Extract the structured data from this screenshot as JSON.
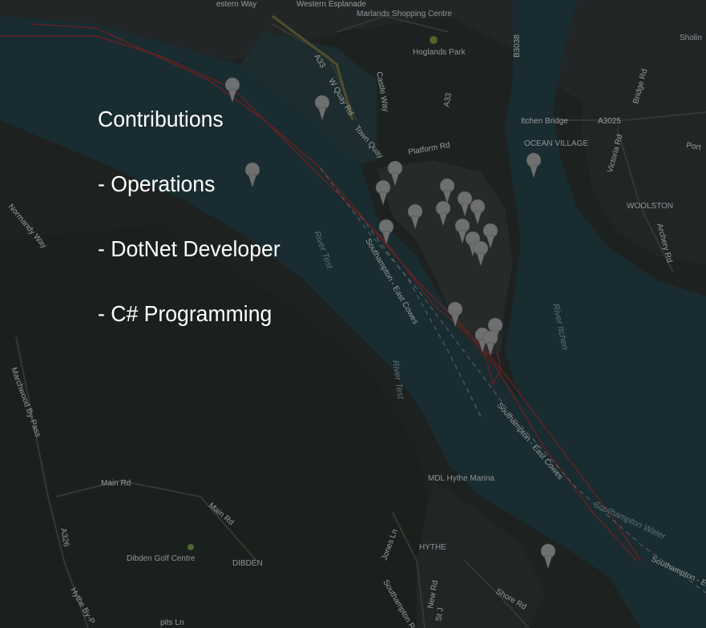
{
  "overlay": {
    "heading": "Contributions",
    "items": [
      "- Operations",
      "- DotNet Developer",
      "- C# Programming"
    ]
  },
  "map": {
    "places": {
      "marlands": "Marlands Shopping Centre",
      "hoglands": "Hoglands Park",
      "itchen_bridge": "Itchen Bridge",
      "ocean_village": "OCEAN VILLAGE",
      "woolston": "WOOLSTON",
      "hythe": "HYTHE",
      "dibden": "DIBDEN",
      "dibden_golf": "Dibden Golf Centre",
      "hythe_marina": "MDL Hythe Marina",
      "sholing": "Sholin"
    },
    "roads": {
      "western_esplanade": "Western Esplanade",
      "western_way": "estern Way",
      "w_quay_rd": "W Quay Rd",
      "a33": "A33",
      "town_quay": "Town Quay",
      "castle_way": "Castle Way",
      "platform_rd": "Platform Rd",
      "a3025": "A3025",
      "b3038": "B3038",
      "victoria_rd": "Victoria Rd",
      "bridge_rd": "Bridge Rd",
      "archery_rd": "Archery Rd",
      "portsmouth_rd": "Port",
      "marchwood_bypass": "Marchwood By-Pass",
      "main_rd": "Main Rd",
      "a326": "A326",
      "jones_ln": "Jones Ln",
      "new_rd": "New Rd",
      "shore_rd": "Shore Rd",
      "southampton_rd": "Southampton R",
      "normandy_way": "Normandy Way",
      "hythe_by_pass": "Hythe By-P",
      "st_johns": "St J",
      "pits_ln": "pits Ln"
    },
    "water": {
      "river_test_1": "River Test",
      "river_test_2": "River Test",
      "river_itchen": "River Itchen",
      "southampton_water": "Southampton Water",
      "ferry_1": "Southampton - East Cowes",
      "ferry_2": "Southampton - East Cowes",
      "ferry_3": "Southampton - East"
    },
    "colors": {
      "water": "#1f3a3f",
      "land": "#2a2f2b",
      "route": "#8c2a2a",
      "marker": "#9a9a9a"
    },
    "icons": {
      "marker": "map-pin-icon",
      "park": "park-icon"
    }
  }
}
